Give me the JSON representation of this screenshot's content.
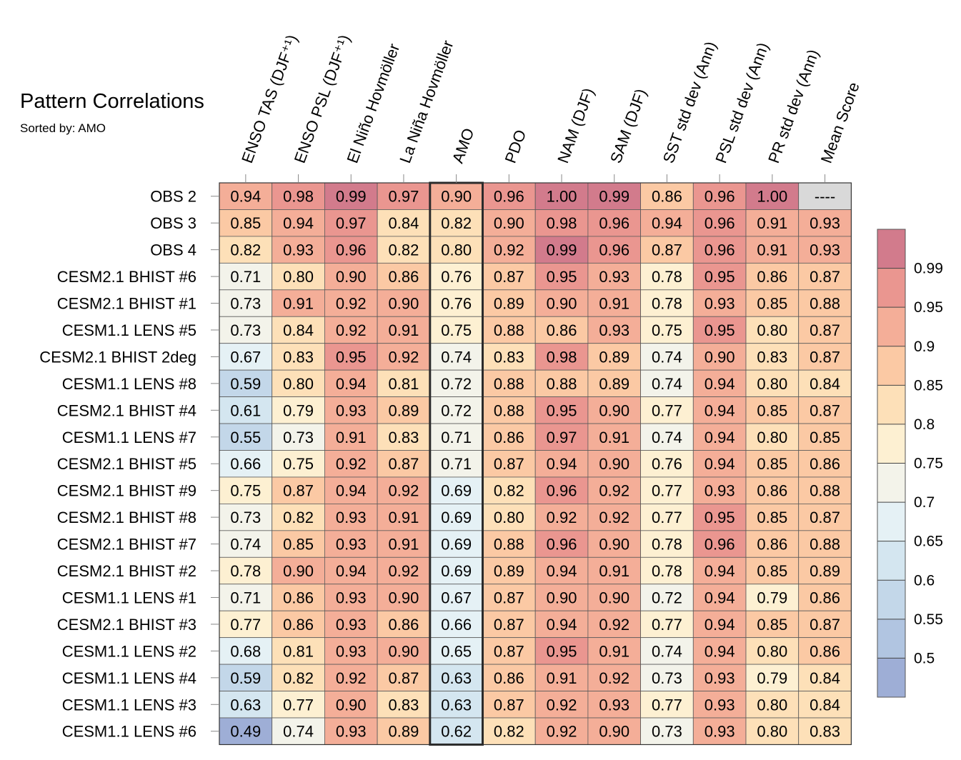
{
  "title": "Pattern Correlations",
  "subtitle": "Sorted by: AMO",
  "chart_data": {
    "type": "heatmap",
    "title": "Pattern Correlations",
    "subtitle": "Sorted by: AMO",
    "columns": [
      "ENSO TAS (DJF⁺¹)",
      "ENSO PSL (DJF⁺¹)",
      "El Niño Hovmöller",
      "La Niña Hovmöller",
      "AMO",
      "PDO",
      "NAM (DJF)",
      "SAM (DJF)",
      "SST std dev (Ann)",
      "PSL std dev (Ann)",
      "PR std dev (Ann)",
      "Mean Score"
    ],
    "highlighted_column": "AMO",
    "rows": [
      {
        "label": "OBS 2",
        "values": [
          0.94,
          0.98,
          0.99,
          0.97,
          0.9,
          0.96,
          1.0,
          0.99,
          0.86,
          0.96,
          1.0,
          null
        ],
        "text": [
          "0.94",
          "0.98",
          "0.99",
          "0.97",
          "0.90",
          "0.96",
          "1.00",
          "0.99",
          "0.86",
          "0.96",
          "1.00",
          "----"
        ]
      },
      {
        "label": "OBS 3",
        "values": [
          0.85,
          0.94,
          0.97,
          0.84,
          0.82,
          0.9,
          0.98,
          0.96,
          0.94,
          0.96,
          0.91,
          0.93
        ],
        "text": [
          "0.85",
          "0.94",
          "0.97",
          "0.84",
          "0.82",
          "0.90",
          "0.98",
          "0.96",
          "0.94",
          "0.96",
          "0.91",
          "0.93"
        ]
      },
      {
        "label": "OBS 4",
        "values": [
          0.82,
          0.93,
          0.96,
          0.82,
          0.8,
          0.92,
          0.99,
          0.96,
          0.87,
          0.96,
          0.91,
          0.93
        ],
        "text": [
          "0.82",
          "0.93",
          "0.96",
          "0.82",
          "0.80",
          "0.92",
          "0.99",
          "0.96",
          "0.87",
          "0.96",
          "0.91",
          "0.93"
        ]
      },
      {
        "label": "CESM2.1 BHIST #6",
        "values": [
          0.71,
          0.8,
          0.9,
          0.86,
          0.76,
          0.87,
          0.95,
          0.93,
          0.78,
          0.95,
          0.86,
          0.87
        ],
        "text": [
          "0.71",
          "0.80",
          "0.90",
          "0.86",
          "0.76",
          "0.87",
          "0.95",
          "0.93",
          "0.78",
          "0.95",
          "0.86",
          "0.87"
        ]
      },
      {
        "label": "CESM2.1 BHIST #1",
        "values": [
          0.73,
          0.91,
          0.92,
          0.9,
          0.76,
          0.89,
          0.9,
          0.91,
          0.78,
          0.93,
          0.85,
          0.88
        ],
        "text": [
          "0.73",
          "0.91",
          "0.92",
          "0.90",
          "0.76",
          "0.89",
          "0.90",
          "0.91",
          "0.78",
          "0.93",
          "0.85",
          "0.88"
        ]
      },
      {
        "label": "CESM1.1 LENS #5",
        "values": [
          0.73,
          0.84,
          0.92,
          0.91,
          0.75,
          0.88,
          0.86,
          0.93,
          0.75,
          0.95,
          0.8,
          0.87
        ],
        "text": [
          "0.73",
          "0.84",
          "0.92",
          "0.91",
          "0.75",
          "0.88",
          "0.86",
          "0.93",
          "0.75",
          "0.95",
          "0.80",
          "0.87"
        ]
      },
      {
        "label": "CESM2.1 BHIST 2deg",
        "values": [
          0.67,
          0.83,
          0.95,
          0.92,
          0.74,
          0.83,
          0.98,
          0.89,
          0.74,
          0.9,
          0.83,
          0.87
        ],
        "text": [
          "0.67",
          "0.83",
          "0.95",
          "0.92",
          "0.74",
          "0.83",
          "0.98",
          "0.89",
          "0.74",
          "0.90",
          "0.83",
          "0.87"
        ]
      },
      {
        "label": "CESM1.1 LENS #8",
        "values": [
          0.59,
          0.8,
          0.94,
          0.81,
          0.72,
          0.88,
          0.88,
          0.89,
          0.74,
          0.94,
          0.8,
          0.84
        ],
        "text": [
          "0.59",
          "0.80",
          "0.94",
          "0.81",
          "0.72",
          "0.88",
          "0.88",
          "0.89",
          "0.74",
          "0.94",
          "0.80",
          "0.84"
        ]
      },
      {
        "label": "CESM2.1 BHIST #4",
        "values": [
          0.61,
          0.79,
          0.93,
          0.89,
          0.72,
          0.88,
          0.95,
          0.9,
          0.77,
          0.94,
          0.85,
          0.87
        ],
        "text": [
          "0.61",
          "0.79",
          "0.93",
          "0.89",
          "0.72",
          "0.88",
          "0.95",
          "0.90",
          "0.77",
          "0.94",
          "0.85",
          "0.87"
        ]
      },
      {
        "label": "CESM1.1 LENS #7",
        "values": [
          0.55,
          0.73,
          0.91,
          0.83,
          0.71,
          0.86,
          0.97,
          0.91,
          0.74,
          0.94,
          0.8,
          0.85
        ],
        "text": [
          "0.55",
          "0.73",
          "0.91",
          "0.83",
          "0.71",
          "0.86",
          "0.97",
          "0.91",
          "0.74",
          "0.94",
          "0.80",
          "0.85"
        ]
      },
      {
        "label": "CESM2.1 BHIST #5",
        "values": [
          0.66,
          0.75,
          0.92,
          0.87,
          0.71,
          0.87,
          0.94,
          0.9,
          0.76,
          0.94,
          0.85,
          0.86
        ],
        "text": [
          "0.66",
          "0.75",
          "0.92",
          "0.87",
          "0.71",
          "0.87",
          "0.94",
          "0.90",
          "0.76",
          "0.94",
          "0.85",
          "0.86"
        ]
      },
      {
        "label": "CESM2.1 BHIST #9",
        "values": [
          0.75,
          0.87,
          0.94,
          0.92,
          0.69,
          0.82,
          0.96,
          0.92,
          0.77,
          0.93,
          0.86,
          0.88
        ],
        "text": [
          "0.75",
          "0.87",
          "0.94",
          "0.92",
          "0.69",
          "0.82",
          "0.96",
          "0.92",
          "0.77",
          "0.93",
          "0.86",
          "0.88"
        ]
      },
      {
        "label": "CESM2.1 BHIST #8",
        "values": [
          0.73,
          0.82,
          0.93,
          0.91,
          0.69,
          0.8,
          0.92,
          0.92,
          0.77,
          0.95,
          0.85,
          0.87
        ],
        "text": [
          "0.73",
          "0.82",
          "0.93",
          "0.91",
          "0.69",
          "0.80",
          "0.92",
          "0.92",
          "0.77",
          "0.95",
          "0.85",
          "0.87"
        ]
      },
      {
        "label": "CESM2.1 BHIST #7",
        "values": [
          0.74,
          0.85,
          0.93,
          0.91,
          0.69,
          0.88,
          0.96,
          0.9,
          0.78,
          0.96,
          0.86,
          0.88
        ],
        "text": [
          "0.74",
          "0.85",
          "0.93",
          "0.91",
          "0.69",
          "0.88",
          "0.96",
          "0.90",
          "0.78",
          "0.96",
          "0.86",
          "0.88"
        ]
      },
      {
        "label": "CESM2.1 BHIST #2",
        "values": [
          0.78,
          0.9,
          0.94,
          0.92,
          0.69,
          0.89,
          0.94,
          0.91,
          0.78,
          0.94,
          0.85,
          0.89
        ],
        "text": [
          "0.78",
          "0.90",
          "0.94",
          "0.92",
          "0.69",
          "0.89",
          "0.94",
          "0.91",
          "0.78",
          "0.94",
          "0.85",
          "0.89"
        ]
      },
      {
        "label": "CESM1.1 LENS #1",
        "values": [
          0.71,
          0.86,
          0.93,
          0.9,
          0.67,
          0.87,
          0.9,
          0.9,
          0.72,
          0.94,
          0.79,
          0.86
        ],
        "text": [
          "0.71",
          "0.86",
          "0.93",
          "0.90",
          "0.67",
          "0.87",
          "0.90",
          "0.90",
          "0.72",
          "0.94",
          "0.79",
          "0.86"
        ]
      },
      {
        "label": "CESM2.1 BHIST #3",
        "values": [
          0.77,
          0.86,
          0.93,
          0.86,
          0.66,
          0.87,
          0.94,
          0.92,
          0.77,
          0.94,
          0.85,
          0.87
        ],
        "text": [
          "0.77",
          "0.86",
          "0.93",
          "0.86",
          "0.66",
          "0.87",
          "0.94",
          "0.92",
          "0.77",
          "0.94",
          "0.85",
          "0.87"
        ]
      },
      {
        "label": "CESM1.1 LENS #2",
        "values": [
          0.68,
          0.81,
          0.93,
          0.9,
          0.65,
          0.87,
          0.95,
          0.91,
          0.74,
          0.94,
          0.8,
          0.86
        ],
        "text": [
          "0.68",
          "0.81",
          "0.93",
          "0.90",
          "0.65",
          "0.87",
          "0.95",
          "0.91",
          "0.74",
          "0.94",
          "0.80",
          "0.86"
        ]
      },
      {
        "label": "CESM1.1 LENS #4",
        "values": [
          0.59,
          0.82,
          0.92,
          0.87,
          0.63,
          0.86,
          0.91,
          0.92,
          0.73,
          0.93,
          0.79,
          0.84
        ],
        "text": [
          "0.59",
          "0.82",
          "0.92",
          "0.87",
          "0.63",
          "0.86",
          "0.91",
          "0.92",
          "0.73",
          "0.93",
          "0.79",
          "0.84"
        ]
      },
      {
        "label": "CESM1.1 LENS #3",
        "values": [
          0.63,
          0.77,
          0.9,
          0.83,
          0.63,
          0.87,
          0.92,
          0.93,
          0.77,
          0.93,
          0.8,
          0.84
        ],
        "text": [
          "0.63",
          "0.77",
          "0.90",
          "0.83",
          "0.63",
          "0.87",
          "0.92",
          "0.93",
          "0.77",
          "0.93",
          "0.80",
          "0.84"
        ]
      },
      {
        "label": "CESM1.1 LENS #6",
        "values": [
          0.49,
          0.74,
          0.93,
          0.89,
          0.62,
          0.82,
          0.92,
          0.9,
          0.73,
          0.93,
          0.8,
          0.83
        ],
        "text": [
          "0.49",
          "0.74",
          "0.93",
          "0.89",
          "0.62",
          "0.82",
          "0.92",
          "0.90",
          "0.73",
          "0.93",
          "0.80",
          "0.83"
        ]
      }
    ],
    "colorbar": {
      "levels": [
        0.5,
        0.55,
        0.6,
        0.65,
        0.7,
        0.75,
        0.8,
        0.85,
        0.9,
        0.95,
        0.99
      ],
      "tick_labels": [
        "0.5",
        "0.55",
        "0.6",
        "0.65",
        "0.7",
        "0.75",
        "0.8",
        "0.85",
        "0.9",
        "0.95",
        "0.99"
      ],
      "colors": [
        "#9eaed6",
        "#b1c5e1",
        "#c3d7e9",
        "#d4e6f0",
        "#e5f1f5",
        "#f3f3ea",
        "#fdf0d2",
        "#fde0b8",
        "#fbc9a4",
        "#f4ae98",
        "#ea9690",
        "#d27b8c"
      ],
      "missing_color": "#d9d9d9"
    }
  }
}
